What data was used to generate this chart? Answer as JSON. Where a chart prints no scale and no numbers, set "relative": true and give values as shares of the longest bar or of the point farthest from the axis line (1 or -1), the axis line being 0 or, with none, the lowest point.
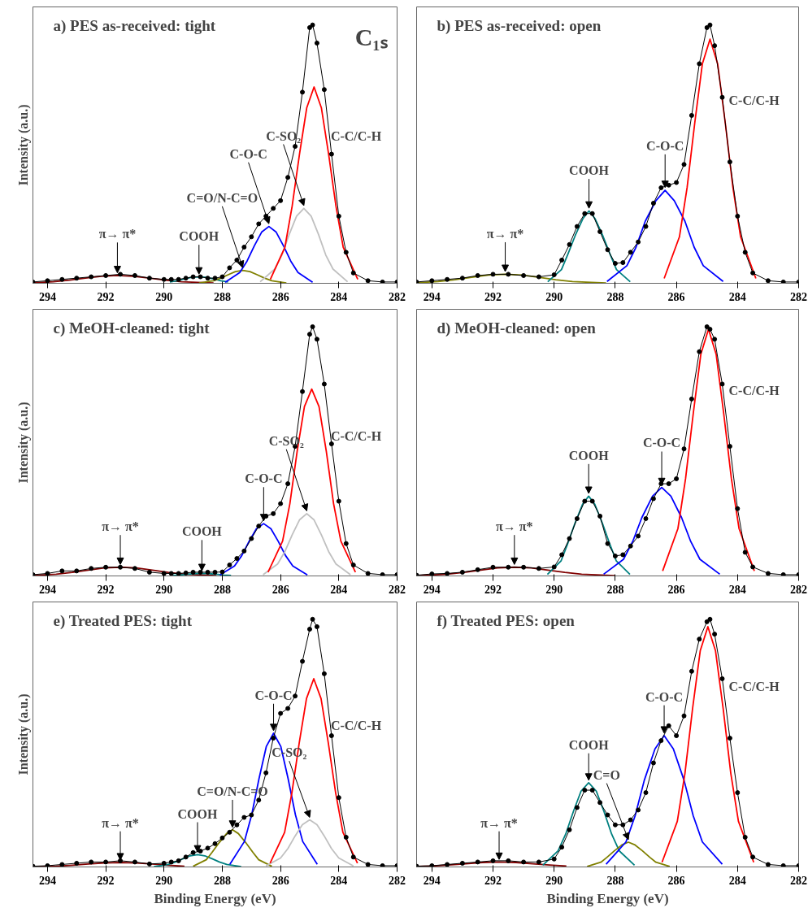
{
  "chart_data": [
    {
      "type": "line",
      "title": "a) PES as-received: tight",
      "ylabel": "Intensity (a.u.)",
      "relative": true,
      "tick_labels": "x",
      "xlim": [
        294.5,
        282
      ],
      "xticks": [
        294,
        292,
        290,
        288,
        286,
        284,
        282
      ],
      "x": [
        294.5,
        294,
        293.5,
        293,
        292.5,
        292,
        291.5,
        291,
        290.5,
        290,
        289.75,
        289.5,
        289.25,
        289,
        288.75,
        288.5,
        288.25,
        288,
        287.75,
        287.5,
        287.25,
        287,
        286.75,
        286.5,
        286.25,
        286,
        285.75,
        285.5,
        285.25,
        285,
        284.9,
        284.75,
        284.5,
        284.25,
        284,
        283.75,
        283.5,
        283,
        282.5,
        282
      ],
      "series": [
        {
          "color": "#000000",
          "marker": "circle",
          "values": [
            0.005,
            0.01,
            0.015,
            0.02,
            0.025,
            0.03,
            0.035,
            0.03,
            0.02,
            0.015,
            0.015,
            0.015,
            0.02,
            0.025,
            0.025,
            0.02,
            0.02,
            0.025,
            0.06,
            0.09,
            0.14,
            0.18,
            0.23,
            0.26,
            0.29,
            0.32,
            0.41,
            0.53,
            0.74,
            0.99,
            1.0,
            0.93,
            0.75,
            0.5,
            0.26,
            0.12,
            0.04,
            0.01,
            0.005,
            0.005
          ]
        },
        {
          "name": "π→ π*",
          "color": "#800000",
          "x": [
            294.5,
            293.8,
            293.25,
            292.7,
            292.15,
            291.6,
            291.05,
            290.5,
            289.95,
            289.4,
            288.3
          ],
          "values": [
            0.002,
            0.006,
            0.012,
            0.02,
            0.027,
            0.03,
            0.027,
            0.02,
            0.012,
            0.006,
            0.001
          ]
        },
        {
          "name": "COOH",
          "color": "#008080",
          "x": [
            289.8,
            289.55,
            289.3,
            289.05,
            288.8,
            288.55,
            288.3,
            288.05,
            287.8
          ],
          "values": [
            0.005,
            0.01,
            0.017,
            0.023,
            0.025,
            0.023,
            0.017,
            0.01,
            0.005
          ]
        },
        {
          "name": "C=O/N-C=O",
          "color": "#808000",
          "x": [
            288.8,
            288.3,
            288.05,
            287.8,
            287.55,
            287.3,
            287.05,
            286.8,
            286.55,
            286.3,
            285.8
          ],
          "values": [
            0.001,
            0.01,
            0.02,
            0.033,
            0.045,
            0.05,
            0.045,
            0.033,
            0.02,
            0.01,
            0.001
          ]
        },
        {
          "name": "C-O-C",
          "color": "#0000ff",
          "x": [
            287.9,
            287.4,
            287.15,
            286.9,
            286.65,
            286.4,
            286.15,
            285.9,
            285.65,
            285.4,
            284.9
          ],
          "values": [
            0.004,
            0.042,
            0.086,
            0.145,
            0.198,
            0.22,
            0.198,
            0.145,
            0.086,
            0.042,
            0.004
          ]
        },
        {
          "name": "C-SO₂",
          "color": "#c0c0c0",
          "x": [
            286.7,
            286.2,
            285.95,
            285.7,
            285.45,
            285.2,
            284.95,
            284.7,
            284.45,
            284.2,
            283.7
          ],
          "values": [
            0.006,
            0.055,
            0.11,
            0.19,
            0.26,
            0.29,
            0.26,
            0.19,
            0.11,
            0.055,
            0.006
          ]
        },
        {
          "name": "C-C/C-H",
          "color": "#ff0000",
          "x": [
            286.35,
            285.85,
            285.6,
            285.35,
            285.1,
            284.85,
            284.6,
            284.35,
            284.1,
            283.85,
            283.35
          ],
          "values": [
            0.015,
            0.14,
            0.3,
            0.5,
            0.68,
            0.76,
            0.68,
            0.5,
            0.3,
            0.14,
            0.015
          ]
        }
      ],
      "annotations": [
        "C₁ₛ"
      ]
    },
    {
      "type": "line",
      "title": "b) PES as-received: open",
      "relative": true,
      "tick_labels": "x",
      "xlim": [
        294.5,
        282
      ],
      "xticks": [
        294,
        292,
        290,
        288,
        286,
        284,
        282
      ],
      "x": [
        294.5,
        294,
        293.5,
        293,
        292.5,
        292,
        291.5,
        291,
        290.5,
        290,
        289.75,
        289.5,
        289.25,
        289,
        288.75,
        288.5,
        288.25,
        288,
        287.75,
        287.5,
        287.25,
        287,
        286.75,
        286.5,
        286.25,
        286,
        285.75,
        285.5,
        285.25,
        285,
        284.9,
        284.75,
        284.5,
        284.25,
        284,
        283.75,
        283.5,
        283,
        282.5,
        282
      ],
      "series": [
        {
          "color": "#000000",
          "marker": "circle",
          "values": [
            0.005,
            0.01,
            0.015,
            0.02,
            0.03,
            0.035,
            0.035,
            0.03,
            0.025,
            0.033,
            0.09,
            0.15,
            0.22,
            0.27,
            0.27,
            0.2,
            0.13,
            0.077,
            0.08,
            0.12,
            0.16,
            0.22,
            0.31,
            0.37,
            0.38,
            0.39,
            0.46,
            0.65,
            0.85,
            0.99,
            1.0,
            0.92,
            0.72,
            0.47,
            0.26,
            0.12,
            0.04,
            0.01,
            0.005,
            0.005
          ]
        },
        {
          "name": "π→ π*",
          "color": "#808000",
          "x": [
            294.5,
            293.8,
            293.25,
            292.7,
            292.15,
            291.6,
            291.05,
            290.5,
            289.95,
            289.4,
            288.3
          ],
          "values": [
            0.002,
            0.007,
            0.014,
            0.023,
            0.032,
            0.035,
            0.032,
            0.023,
            0.014,
            0.007,
            0.001
          ]
        },
        {
          "name": "COOH",
          "color": "#008080",
          "x": [
            290.21,
            289.76,
            289.56,
            289.31,
            289.06,
            288.86,
            288.66,
            288.41,
            288.16,
            287.96,
            287.51
          ],
          "values": [
            0.006,
            0.053,
            0.11,
            0.185,
            0.25,
            0.28,
            0.25,
            0.185,
            0.11,
            0.053,
            0.006
          ]
        },
        {
          "name": "C-O-C",
          "color": "#0000ff",
          "x": [
            288.27,
            287.62,
            287.32,
            287.02,
            286.67,
            286.37,
            286.07,
            285.72,
            285.42,
            285.12,
            284.47
          ],
          "values": [
            0.007,
            0.068,
            0.14,
            0.24,
            0.32,
            0.36,
            0.32,
            0.24,
            0.14,
            0.068,
            0.007
          ]
        },
        {
          "name": "C-C/C-H",
          "color": "#ff0000",
          "x": [
            286.4,
            285.9,
            285.65,
            285.4,
            285.15,
            284.9,
            284.65,
            284.4,
            284.15,
            283.9,
            283.4
          ],
          "values": [
            0.019,
            0.18,
            0.37,
            0.62,
            0.85,
            0.945,
            0.85,
            0.62,
            0.37,
            0.18,
            0.019
          ]
        }
      ]
    },
    {
      "type": "line",
      "title": "c) MeOH-cleaned: tight",
      "ylabel": "Intensity (a.u.)",
      "relative": true,
      "tick_labels": "x",
      "xlim": [
        294.5,
        282
      ],
      "xticks": [
        294,
        292,
        290,
        288,
        286,
        284,
        282
      ],
      "x": [
        294.5,
        294,
        293.5,
        293,
        292.5,
        292,
        291.5,
        291,
        290.5,
        290,
        289.75,
        289.5,
        289.25,
        289,
        288.75,
        288.5,
        288.25,
        288,
        287.75,
        287.5,
        287.25,
        287,
        286.75,
        286.5,
        286.25,
        286,
        285.75,
        285.5,
        285.25,
        285,
        284.9,
        284.75,
        284.5,
        284.25,
        284,
        283.75,
        283.5,
        283,
        282.5,
        282
      ],
      "series": [
        {
          "color": "#000000",
          "marker": "circle",
          "values": [
            0.005,
            0.01,
            0.02,
            0.02,
            0.03,
            0.035,
            0.035,
            0.03,
            0.015,
            0.01,
            0.01,
            0.01,
            0.012,
            0.015,
            0.015,
            0.015,
            0.015,
            0.016,
            0.044,
            0.07,
            0.1,
            0.15,
            0.2,
            0.24,
            0.25,
            0.29,
            0.37,
            0.52,
            0.74,
            0.97,
            1.0,
            0.95,
            0.77,
            0.53,
            0.3,
            0.13,
            0.044,
            0.01,
            0.005,
            0.005
          ]
        },
        {
          "name": "π→ π*",
          "color": "#800000",
          "x": [
            294.5,
            293.7,
            293.15,
            292.6,
            292.05,
            291.5,
            290.95,
            290.4,
            289.85,
            289.3,
            288.2
          ],
          "values": [
            0.002,
            0.007,
            0.014,
            0.023,
            0.032,
            0.035,
            0.032,
            0.023,
            0.014,
            0.007,
            0.001
          ]
        },
        {
          "name": "COOH",
          "color": "#008080",
          "x": [
            289.7,
            289.45,
            289.2,
            288.95,
            288.7,
            288.45,
            288.2,
            287.95,
            287.7
          ],
          "values": [
            0.002,
            0.004,
            0.007,
            0.009,
            0.01,
            0.009,
            0.007,
            0.004,
            0.002
          ]
        },
        {
          "name": "C-O-C",
          "color": "#0000ff",
          "x": [
            288.08,
            287.58,
            287.33,
            287.08,
            286.83,
            286.58,
            286.33,
            286.08,
            285.83,
            285.58,
            285.08
          ],
          "values": [
            0.004,
            0.04,
            0.082,
            0.139,
            0.189,
            0.21,
            0.189,
            0.139,
            0.082,
            0.04,
            0.004
          ]
        },
        {
          "name": "C-SO₂",
          "color": "#c0c0c0",
          "x": [
            286.6,
            286.1,
            285.85,
            285.6,
            285.35,
            285.1,
            284.85,
            284.6,
            284.35,
            284.1,
            283.6
          ],
          "values": [
            0.005,
            0.048,
            0.098,
            0.165,
            0.225,
            0.25,
            0.225,
            0.165,
            0.098,
            0.048,
            0.005
          ]
        },
        {
          "name": "C-C/C-H",
          "color": "#ff0000",
          "x": [
            286.43,
            285.93,
            285.68,
            285.43,
            285.18,
            284.93,
            284.68,
            284.43,
            284.18,
            283.93,
            283.43
          ],
          "values": [
            0.015,
            0.14,
            0.29,
            0.5,
            0.68,
            0.75,
            0.68,
            0.5,
            0.29,
            0.14,
            0.015
          ]
        }
      ]
    },
    {
      "type": "line",
      "title": "d) MeOH-cleaned: open",
      "relative": true,
      "tick_labels": "x",
      "xlim": [
        294.5,
        282
      ],
      "xticks": [
        294,
        292,
        290,
        288,
        286,
        284,
        282
      ],
      "x": [
        294.5,
        294,
        293.5,
        293,
        292.5,
        292,
        291.5,
        291,
        290.5,
        290,
        289.75,
        289.5,
        289.25,
        289,
        288.75,
        288.5,
        288.25,
        288,
        287.75,
        287.5,
        287.25,
        287,
        286.75,
        286.5,
        286.25,
        286,
        285.75,
        285.5,
        285.25,
        285,
        284.9,
        284.75,
        284.5,
        284.25,
        284,
        283.75,
        283.5,
        283,
        282.5,
        282
      ],
      "series": [
        {
          "color": "#000000",
          "marker": "circle",
          "values": [
            0.003,
            0.008,
            0.01,
            0.015,
            0.025,
            0.035,
            0.035,
            0.035,
            0.03,
            0.036,
            0.085,
            0.15,
            0.23,
            0.3,
            0.3,
            0.24,
            0.13,
            0.08,
            0.085,
            0.12,
            0.16,
            0.23,
            0.31,
            0.37,
            0.37,
            0.39,
            0.51,
            0.71,
            0.9,
            1.0,
            0.99,
            0.95,
            0.77,
            0.52,
            0.27,
            0.095,
            0.036,
            0.01,
            0.005,
            0.005
          ]
        },
        {
          "name": "π→ π*",
          "color": "#800000",
          "x": [
            294.5,
            293.5,
            292.95,
            292.4,
            291.85,
            291.3,
            290.75,
            290.2,
            289.65,
            289.1,
            288.0
          ],
          "values": [
            0.001,
            0.007,
            0.014,
            0.023,
            0.032,
            0.035,
            0.032,
            0.023,
            0.014,
            0.007,
            0.001
          ]
        },
        {
          "name": "COOH",
          "color": "#008080",
          "x": [
            290.22,
            289.77,
            289.57,
            289.32,
            289.07,
            288.87,
            288.67,
            288.42,
            288.17,
            287.97,
            287.52
          ],
          "values": [
            0.006,
            0.061,
            0.125,
            0.211,
            0.288,
            0.32,
            0.288,
            0.211,
            0.125,
            0.061,
            0.006
          ]
        },
        {
          "name": "C-O-C",
          "color": "#0000ff",
          "x": [
            288.38,
            287.73,
            287.43,
            287.13,
            286.78,
            286.48,
            286.18,
            285.83,
            285.53,
            285.23,
            284.58
          ],
          "values": [
            0.007,
            0.067,
            0.138,
            0.234,
            0.32,
            0.355,
            0.32,
            0.234,
            0.138,
            0.067,
            0.007
          ]
        },
        {
          "name": "C-C/C-H",
          "color": "#ff0000",
          "x": [
            286.45,
            285.95,
            285.7,
            285.45,
            285.2,
            284.95,
            284.7,
            284.45,
            284.2,
            283.95,
            283.45
          ],
          "values": [
            0.02,
            0.19,
            0.39,
            0.65,
            0.89,
            0.99,
            0.89,
            0.65,
            0.39,
            0.19,
            0.02
          ]
        }
      ]
    },
    {
      "type": "line",
      "title": "e) Treated PES: tight",
      "xlabel": "Binding Energy (eV)",
      "ylabel": "Intensity (a.u.)",
      "relative": true,
      "tick_labels": "x",
      "xlim": [
        294.5,
        282
      ],
      "xticks": [
        294,
        292,
        290,
        288,
        286,
        284,
        282
      ],
      "x": [
        294.5,
        294,
        293.5,
        293,
        292.5,
        292,
        291.5,
        291,
        290.5,
        290,
        289.75,
        289.5,
        289.25,
        289,
        288.75,
        288.5,
        288.25,
        288,
        287.75,
        287.5,
        287.25,
        287,
        286.75,
        286.5,
        286.25,
        286,
        285.75,
        285.5,
        285.25,
        285,
        284.9,
        284.75,
        284.5,
        284.25,
        284,
        283.75,
        283.5,
        283,
        282.5,
        282
      ],
      "series": [
        {
          "color": "#000000",
          "marker": "circle",
          "values": [
            0.003,
            0.005,
            0.01,
            0.015,
            0.02,
            0.02,
            0.025,
            0.02,
            0.012,
            0.015,
            0.02,
            0.025,
            0.04,
            0.058,
            0.064,
            0.076,
            0.094,
            0.117,
            0.14,
            0.17,
            0.2,
            0.21,
            0.27,
            0.38,
            0.52,
            0.62,
            0.64,
            0.69,
            0.83,
            0.96,
            1.0,
            0.97,
            0.78,
            0.53,
            0.28,
            0.12,
            0.04,
            0.01,
            0.005,
            0.005
          ]
        },
        {
          "name": "π→ π*",
          "color": "#800000",
          "x": [
            294.5,
            293.7,
            293.15,
            292.6,
            292.05,
            291.5,
            290.95,
            290.4,
            289.85,
            289.3
          ],
          "values": [
            0.001,
            0.003,
            0.007,
            0.012,
            0.016,
            0.018,
            0.016,
            0.012,
            0.007,
            0.003
          ]
        },
        {
          "name": "COOH",
          "color": "#008080",
          "x": [
            290.35,
            289.85,
            289.6,
            289.35,
            289.1,
            288.85,
            288.6,
            288.35,
            288.1,
            287.85,
            287.35
          ],
          "values": [
            0.001,
            0.01,
            0.02,
            0.033,
            0.045,
            0.05,
            0.045,
            0.033,
            0.02,
            0.01,
            0.001
          ]
        },
        {
          "name": "C=O/N-C=O",
          "color": "#808000",
          "x": [
            289.0,
            288.55,
            288.35,
            288.1,
            287.85,
            287.65,
            287.45,
            287.2,
            286.95,
            286.75,
            286.3
          ],
          "values": [
            0.003,
            0.029,
            0.059,
            0.099,
            0.135,
            0.15,
            0.135,
            0.099,
            0.059,
            0.029,
            0.003
          ]
        },
        {
          "name": "C-O-C",
          "color": "#0000ff",
          "x": [
            287.74,
            287.24,
            286.99,
            286.74,
            286.49,
            286.24,
            285.99,
            285.74,
            285.49,
            285.24,
            284.74
          ],
          "values": [
            0.011,
            0.103,
            0.211,
            0.356,
            0.486,
            0.54,
            0.486,
            0.356,
            0.211,
            0.103,
            0.011
          ]
        },
        {
          "name": "C-SO₂",
          "color": "#c0c0c0",
          "x": [
            286.5,
            286.0,
            285.75,
            285.5,
            285.25,
            285.0,
            284.75,
            284.5,
            284.25,
            284.0,
            283.5
          ],
          "values": [
            0.004,
            0.036,
            0.074,
            0.125,
            0.171,
            0.19,
            0.171,
            0.125,
            0.074,
            0.036,
            0.004
          ]
        },
        {
          "name": "C-C/C-H",
          "color": "#ff0000",
          "x": [
            286.36,
            285.86,
            285.61,
            285.36,
            285.11,
            284.86,
            284.61,
            284.36,
            284.11,
            283.86,
            283.36
          ],
          "values": [
            0.015,
            0.14,
            0.3,
            0.5,
            0.68,
            0.76,
            0.68,
            0.5,
            0.3,
            0.14,
            0.015
          ]
        }
      ]
    },
    {
      "type": "line",
      "title": "f) Treated PES: open",
      "xlabel": "Binding Energy (eV)",
      "relative": true,
      "tick_labels": "x",
      "xlim": [
        294.5,
        282
      ],
      "xticks": [
        294,
        292,
        290,
        288,
        286,
        284,
        282
      ],
      "x": [
        294.5,
        294,
        293.5,
        293,
        292.5,
        292,
        291.5,
        291,
        290.5,
        290,
        289.75,
        289.5,
        289.25,
        289,
        288.75,
        288.5,
        288.25,
        288,
        287.75,
        287.5,
        287.25,
        287,
        286.75,
        286.5,
        286.25,
        286,
        285.75,
        285.5,
        285.25,
        285,
        284.9,
        284.75,
        284.5,
        284.25,
        284,
        283.75,
        283.5,
        283,
        282.5,
        282
      ],
      "series": [
        {
          "color": "#000000",
          "marker": "circle",
          "values": [
            0.003,
            0.005,
            0.01,
            0.015,
            0.02,
            0.025,
            0.025,
            0.02,
            0.02,
            0.032,
            0.08,
            0.15,
            0.24,
            0.31,
            0.31,
            0.26,
            0.21,
            0.17,
            0.17,
            0.19,
            0.23,
            0.3,
            0.42,
            0.51,
            0.57,
            0.53,
            0.61,
            0.79,
            0.92,
            0.99,
            1.0,
            0.94,
            0.76,
            0.52,
            0.3,
            0.12,
            0.04,
            0.01,
            0.005,
            0.005
          ]
        },
        {
          "name": "π→ π*",
          "color": "#800000",
          "x": [
            294.5,
            294.0,
            293.45,
            292.9,
            292.35,
            291.8,
            291.25,
            290.7,
            290.15,
            289.6
          ],
          "values": [
            0.002,
            0.004,
            0.008,
            0.013,
            0.018,
            0.02,
            0.018,
            0.013,
            0.008,
            0.004
          ]
        },
        {
          "name": "COOH",
          "color": "#008080",
          "x": [
            290.37,
            289.87,
            289.62,
            289.37,
            289.12,
            288.87,
            288.62,
            288.37,
            288.12,
            287.87,
            287.37
          ],
          "values": [
            0.007,
            0.065,
            0.133,
            0.224,
            0.306,
            0.34,
            0.306,
            0.224,
            0.133,
            0.065,
            0.007
          ]
        },
        {
          "name": "C=O",
          "color": "#808000",
          "x": [
            288.92,
            288.47,
            288.27,
            288.02,
            287.77,
            287.57,
            287.37,
            287.12,
            286.87,
            286.67,
            286.22
          ],
          "values": [
            0.002,
            0.019,
            0.039,
            0.066,
            0.09,
            0.1,
            0.09,
            0.066,
            0.039,
            0.019,
            0.002
          ]
        },
        {
          "name": "C-O-C",
          "color": "#0000ff",
          "x": [
            288.3,
            287.65,
            287.35,
            287.05,
            286.7,
            286.4,
            286.1,
            285.75,
            285.45,
            285.15,
            284.5
          ],
          "values": [
            0.011,
            0.101,
            0.207,
            0.35,
            0.477,
            0.53,
            0.477,
            0.35,
            0.207,
            0.101,
            0.011
          ]
        },
        {
          "name": "C-C/C-H",
          "color": "#ff0000",
          "x": [
            286.47,
            285.97,
            285.72,
            285.47,
            285.22,
            284.97,
            284.72,
            284.47,
            284.22,
            283.97,
            283.47
          ],
          "values": [
            0.019,
            0.184,
            0.378,
            0.64,
            0.873,
            0.97,
            0.873,
            0.64,
            0.378,
            0.184,
            0.019
          ]
        }
      ]
    }
  ]
}
